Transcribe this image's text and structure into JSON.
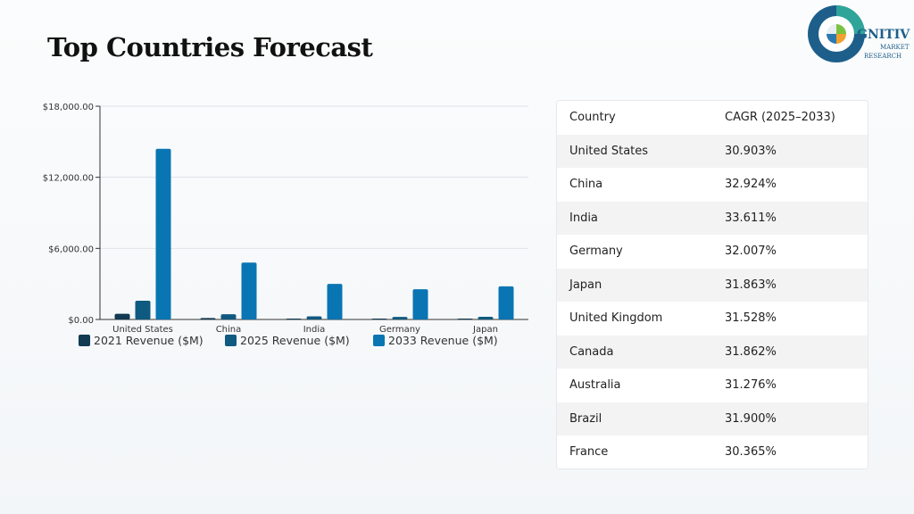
{
  "header": {
    "title": "Top Countries Forecast"
  },
  "logo": {
    "text_main": "GNITIVE",
    "text_sub1": "MARKET",
    "text_sub2": "RESEARCH"
  },
  "table": {
    "headers": [
      "Country",
      "CAGR (2025–2033)"
    ],
    "rows": [
      [
        "United States",
        "30.903%"
      ],
      [
        "China",
        "32.924%"
      ],
      [
        "India",
        "33.611%"
      ],
      [
        "Germany",
        "32.007%"
      ],
      [
        "Japan",
        "31.863%"
      ],
      [
        "United Kingdom",
        "31.528%"
      ],
      [
        "Canada",
        "31.862%"
      ],
      [
        "Australia",
        "31.276%"
      ],
      [
        "Brazil",
        "31.900%"
      ],
      [
        "France",
        "30.365%"
      ]
    ]
  },
  "chart_data": {
    "type": "bar",
    "categories": [
      "United States",
      "China",
      "India",
      "Germany",
      "Japan"
    ],
    "series": [
      {
        "name": "2021 Revenue ($M)",
        "color": "#123a52",
        "values": [
          480,
          120,
          70,
          60,
          55
        ]
      },
      {
        "name": "2025 Revenue ($M)",
        "color": "#0f5a80",
        "values": [
          1580,
          440,
          260,
          220,
          230
        ]
      },
      {
        "name": "2033 Revenue ($M)",
        "color": "#0a75b3",
        "values": [
          14400,
          4800,
          3000,
          2550,
          2800
        ]
      }
    ],
    "ylim": [
      0,
      18000
    ],
    "yticks": [
      0,
      6000,
      12000,
      18000
    ],
    "ytick_labels": [
      "$0.00",
      "$6,000.00",
      "$12,000.00",
      "$18,000.00"
    ],
    "grid": true,
    "legend_position": "bottom-left"
  }
}
